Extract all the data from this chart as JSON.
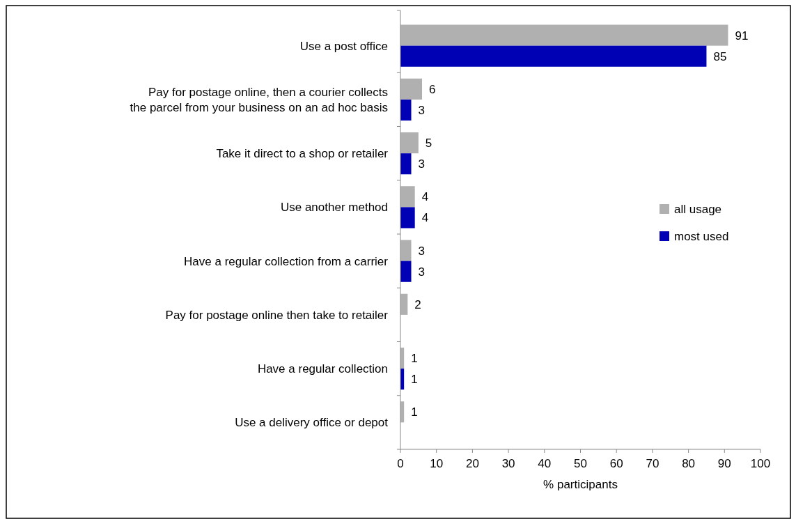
{
  "chart_data": {
    "type": "bar",
    "orientation": "horizontal",
    "xlabel": "% participants",
    "categories": [
      "Use a post office",
      "Pay for postage online, then a courier collects the parcel from your business on an ad hoc basis",
      "Take it direct to a shop or retailer",
      "Use another method",
      "Have a regular collection from a carrier",
      "Pay for postage online then take to retailer",
      "Have a regular collection",
      "Use a delivery office or depot"
    ],
    "series": [
      {
        "name": "all usage",
        "color": "#b0b0b0",
        "values": [
          91,
          6,
          5,
          4,
          3,
          2,
          1,
          1
        ]
      },
      {
        "name": "most used",
        "color": "#0000b4",
        "values": [
          85,
          3,
          3,
          4,
          3,
          null,
          1,
          null
        ]
      }
    ],
    "xlim": [
      0,
      100
    ],
    "xticks": [
      0,
      10,
      20,
      30,
      40,
      50,
      60,
      70,
      80,
      90,
      100
    ],
    "data_labels": true,
    "legend": "right",
    "grid": false
  }
}
